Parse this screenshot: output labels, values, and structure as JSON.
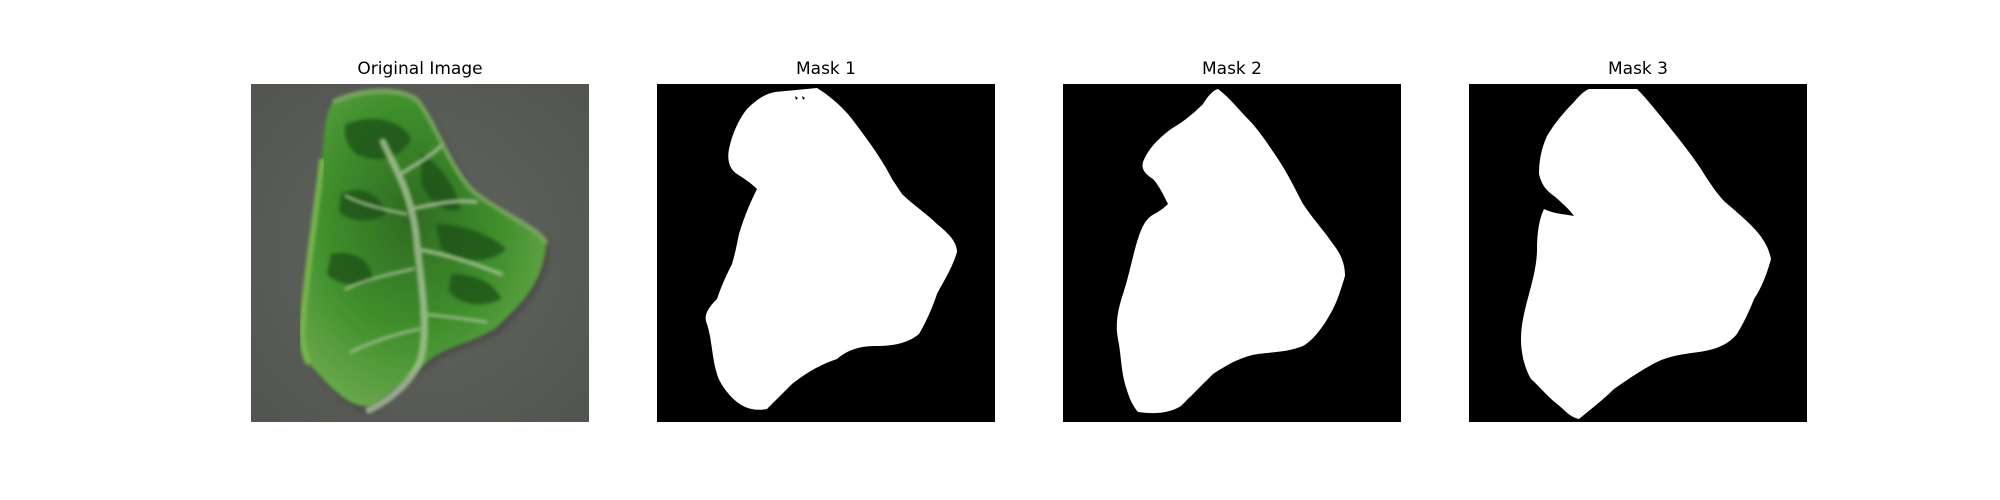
{
  "figure": {
    "panels": [
      {
        "title": "Original Image",
        "kind": "photo",
        "content": "leaf"
      },
      {
        "title": "Mask 1",
        "kind": "mask"
      },
      {
        "title": "Mask 2",
        "kind": "mask"
      },
      {
        "title": "Mask 3",
        "kind": "mask"
      }
    ],
    "colors": {
      "background": "#ffffff",
      "photo_background": "#5b5d5a",
      "leaf_green": "#3c8a2a",
      "leaf_dark": "#1f4f17",
      "leaf_vein": "#9bb58b",
      "mask_background": "#000000",
      "mask_foreground": "#ffffff"
    }
  }
}
